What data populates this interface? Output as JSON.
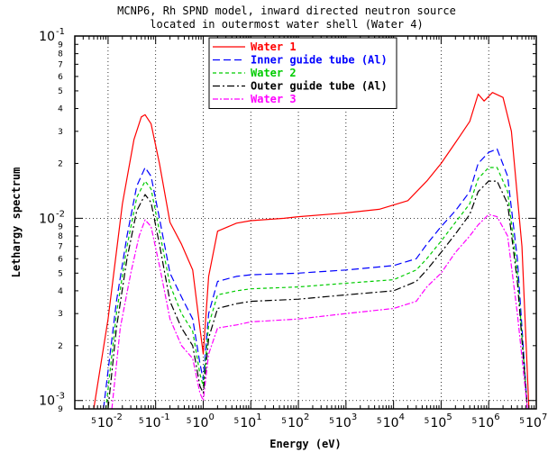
{
  "chart_data": {
    "type": "line",
    "title_lines": [
      "MCNP6, Rh SPND model, inward directed neutron source",
      "located in outermost water shell (Water 4)"
    ],
    "xlabel": "Energy (eV)",
    "ylabel": "Lethargy spectrum",
    "xscale": "log",
    "yscale": "log",
    "xlim": [
      0.002,
      10000000
    ],
    "ylim": [
      0.0009,
      0.1
    ],
    "x_major_ticks": [
      {
        "base": "10",
        "exp": "-2",
        "value": 0.01
      },
      {
        "base": "10",
        "exp": "-1",
        "value": 0.1
      },
      {
        "base": "10",
        "exp": "0",
        "value": 1
      },
      {
        "base": "10",
        "exp": "1",
        "value": 10
      },
      {
        "base": "10",
        "exp": "2",
        "value": 100
      },
      {
        "base": "10",
        "exp": "3",
        "value": 1000
      },
      {
        "base": "10",
        "exp": "4",
        "value": 10000
      },
      {
        "base": "10",
        "exp": "5",
        "value": 100000
      },
      {
        "base": "10",
        "exp": "6",
        "value": 1000000
      },
      {
        "base": "10",
        "exp": "7",
        "value": 10000000
      }
    ],
    "x_minor_label": "5",
    "y_major_ticks": [
      {
        "base": "10",
        "exp": "-3",
        "value": 0.001
      },
      {
        "base": "10",
        "exp": "-2",
        "value": 0.01
      },
      {
        "base": "10",
        "exp": "-1",
        "value": 0.1
      }
    ],
    "y_minor_labels": [
      "2",
      "3",
      "4",
      "5",
      "6",
      "7",
      "8",
      "9"
    ],
    "grid": true,
    "legend_position": "top-center",
    "series": [
      {
        "name": "Water 1",
        "color": "#ff0000",
        "dash": "solid",
        "points": [
          [
            0.005,
            0.0009
          ],
          [
            0.01,
            0.0028
          ],
          [
            0.02,
            0.012
          ],
          [
            0.035,
            0.027
          ],
          [
            0.05,
            0.036
          ],
          [
            0.06,
            0.037
          ],
          [
            0.08,
            0.033
          ],
          [
            0.12,
            0.02
          ],
          [
            0.2,
            0.0095
          ],
          [
            0.35,
            0.0072
          ],
          [
            0.6,
            0.0052
          ],
          [
            0.85,
            0.0025
          ],
          [
            1.0,
            0.0018
          ],
          [
            1.3,
            0.0048
          ],
          [
            2,
            0.0085
          ],
          [
            5,
            0.0094
          ],
          [
            10,
            0.0097
          ],
          [
            50,
            0.01
          ],
          [
            100,
            0.0102
          ],
          [
            1000,
            0.0107
          ],
          [
            5000,
            0.0112
          ],
          [
            20000,
            0.0125
          ],
          [
            50000,
            0.016
          ],
          [
            100000,
            0.02
          ],
          [
            200000,
            0.026
          ],
          [
            400000,
            0.034
          ],
          [
            600000,
            0.048
          ],
          [
            800000,
            0.044
          ],
          [
            1200000,
            0.049
          ],
          [
            2000000,
            0.046
          ],
          [
            3000000,
            0.03
          ],
          [
            5000000,
            0.007
          ],
          [
            7000000,
            0.0009
          ]
        ]
      },
      {
        "name": "Inner guide tube (Al)",
        "color": "#0000ff",
        "dash": "8,4",
        "points": [
          [
            0.008,
            0.0009
          ],
          [
            0.015,
            0.0035
          ],
          [
            0.025,
            0.008
          ],
          [
            0.04,
            0.015
          ],
          [
            0.06,
            0.019
          ],
          [
            0.08,
            0.017
          ],
          [
            0.12,
            0.01
          ],
          [
            0.2,
            0.005
          ],
          [
            0.35,
            0.0037
          ],
          [
            0.6,
            0.0028
          ],
          [
            0.85,
            0.0016
          ],
          [
            1.0,
            0.0013
          ],
          [
            1.3,
            0.003
          ],
          [
            2,
            0.0045
          ],
          [
            5,
            0.0048
          ],
          [
            10,
            0.0049
          ],
          [
            100,
            0.005
          ],
          [
            1000,
            0.0052
          ],
          [
            10000,
            0.0055
          ],
          [
            30000,
            0.006
          ],
          [
            50000,
            0.0072
          ],
          [
            100000,
            0.009
          ],
          [
            200000,
            0.011
          ],
          [
            400000,
            0.014
          ],
          [
            600000,
            0.02
          ],
          [
            1000000,
            0.023
          ],
          [
            1500000,
            0.024
          ],
          [
            2500000,
            0.017
          ],
          [
            4000000,
            0.006
          ],
          [
            6500000,
            0.0009
          ]
        ]
      },
      {
        "name": "Water 2",
        "color": "#00cc00",
        "dash": "4,3",
        "points": [
          [
            0.009,
            0.0009
          ],
          [
            0.015,
            0.003
          ],
          [
            0.025,
            0.007
          ],
          [
            0.04,
            0.013
          ],
          [
            0.06,
            0.016
          ],
          [
            0.08,
            0.0145
          ],
          [
            0.12,
            0.0085
          ],
          [
            0.2,
            0.0043
          ],
          [
            0.35,
            0.003
          ],
          [
            0.6,
            0.0024
          ],
          [
            0.85,
            0.0014
          ],
          [
            1.0,
            0.0012
          ],
          [
            1.3,
            0.0026
          ],
          [
            2,
            0.0038
          ],
          [
            5,
            0.004
          ],
          [
            10,
            0.0041
          ],
          [
            100,
            0.0042
          ],
          [
            1000,
            0.0044
          ],
          [
            10000,
            0.0046
          ],
          [
            30000,
            0.0052
          ],
          [
            50000,
            0.006
          ],
          [
            100000,
            0.0075
          ],
          [
            200000,
            0.0095
          ],
          [
            400000,
            0.012
          ],
          [
            600000,
            0.0165
          ],
          [
            1000000,
            0.019
          ],
          [
            1500000,
            0.019
          ],
          [
            2500000,
            0.014
          ],
          [
            4000000,
            0.005
          ],
          [
            6500000,
            0.0009
          ]
        ]
      },
      {
        "name": "Outer guide tube (Al)",
        "color": "#000000",
        "dash": "8,3,2,3",
        "points": [
          [
            0.01,
            0.0009
          ],
          [
            0.015,
            0.0025
          ],
          [
            0.025,
            0.006
          ],
          [
            0.04,
            0.011
          ],
          [
            0.06,
            0.0135
          ],
          [
            0.08,
            0.0122
          ],
          [
            0.12,
            0.0072
          ],
          [
            0.2,
            0.0035
          ],
          [
            0.35,
            0.0025
          ],
          [
            0.6,
            0.002
          ],
          [
            0.85,
            0.0012
          ],
          [
            1.0,
            0.0011
          ],
          [
            1.3,
            0.0022
          ],
          [
            2,
            0.0032
          ],
          [
            5,
            0.0034
          ],
          [
            10,
            0.0035
          ],
          [
            100,
            0.0036
          ],
          [
            1000,
            0.0038
          ],
          [
            10000,
            0.004
          ],
          [
            30000,
            0.0045
          ],
          [
            50000,
            0.0052
          ],
          [
            100000,
            0.0065
          ],
          [
            200000,
            0.0082
          ],
          [
            400000,
            0.0105
          ],
          [
            600000,
            0.014
          ],
          [
            1000000,
            0.016
          ],
          [
            1500000,
            0.016
          ],
          [
            2500000,
            0.012
          ],
          [
            4000000,
            0.0045
          ],
          [
            6500000,
            0.0009
          ]
        ]
      },
      {
        "name": "Water 3",
        "color": "#ff00ff",
        "dash": "6,2,2,2",
        "points": [
          [
            0.012,
            0.0009
          ],
          [
            0.018,
            0.0025
          ],
          [
            0.03,
            0.005
          ],
          [
            0.045,
            0.008
          ],
          [
            0.06,
            0.0098
          ],
          [
            0.08,
            0.009
          ],
          [
            0.12,
            0.0055
          ],
          [
            0.2,
            0.0028
          ],
          [
            0.35,
            0.002
          ],
          [
            0.6,
            0.0017
          ],
          [
            0.85,
            0.0011
          ],
          [
            1.0,
            0.001
          ],
          [
            1.3,
            0.0018
          ],
          [
            2,
            0.0025
          ],
          [
            5,
            0.0026
          ],
          [
            10,
            0.0027
          ],
          [
            100,
            0.0028
          ],
          [
            1000,
            0.003
          ],
          [
            10000,
            0.0032
          ],
          [
            30000,
            0.0035
          ],
          [
            50000,
            0.0042
          ],
          [
            100000,
            0.005
          ],
          [
            200000,
            0.0065
          ],
          [
            400000,
            0.008
          ],
          [
            600000,
            0.0092
          ],
          [
            1000000,
            0.0105
          ],
          [
            1500000,
            0.0102
          ],
          [
            2500000,
            0.008
          ],
          [
            4000000,
            0.003
          ],
          [
            6500000,
            0.0009
          ]
        ]
      }
    ]
  }
}
